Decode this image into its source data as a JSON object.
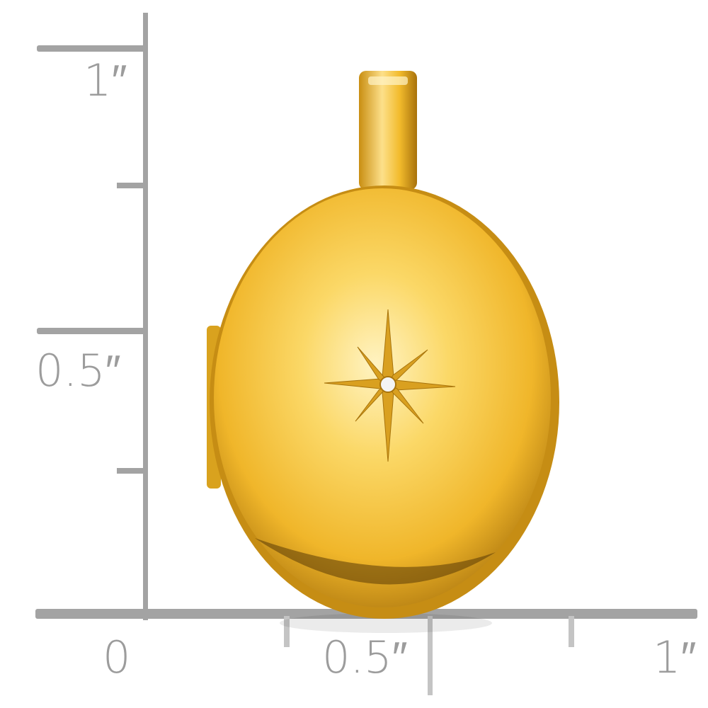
{
  "ruler": {
    "vertical_labels": {
      "top": "1″",
      "middle": "0.5″"
    },
    "horizontal_labels": {
      "zero": "0",
      "middle": "0.5″",
      "end": "1″"
    },
    "color": "#a0a0a0"
  },
  "product": {
    "type": "oval locket pendant with star and stone",
    "metal_color": "#f0b828",
    "stone_color": "#f4f4f4"
  }
}
